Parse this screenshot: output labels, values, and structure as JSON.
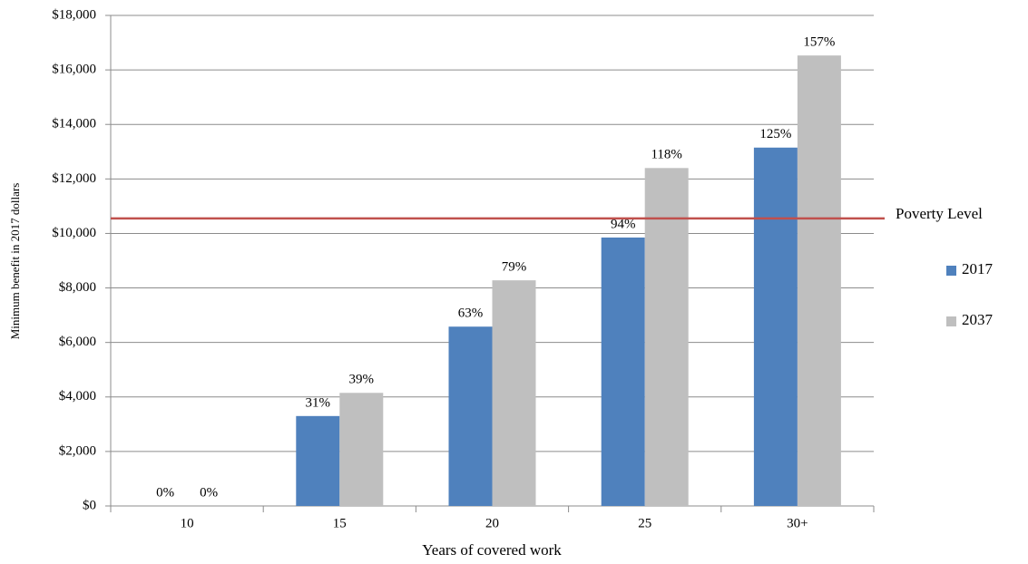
{
  "chart_data": {
    "type": "bar",
    "y_axis_title": "Minimum benefit in 2017 dollars",
    "x_axis_title": "Years of covered work",
    "categories": [
      "10",
      "15",
      "20",
      "25",
      "30+"
    ],
    "series": [
      {
        "name": "2017",
        "color": "#4f81bd",
        "values": [
          0,
          3300,
          6580,
          9850,
          13150
        ],
        "labels": [
          "0%",
          "31%",
          "63%",
          "94%",
          "125%"
        ]
      },
      {
        "name": "2037",
        "color": "#bfbfbf",
        "values": [
          0,
          4150,
          8280,
          12400,
          16530
        ],
        "labels": [
          "0%",
          "39%",
          "79%",
          "118%",
          "157%"
        ]
      }
    ],
    "reference_line": {
      "value": 10550,
      "label": "Poverty Level",
      "color": "#c0504d"
    },
    "ylim": [
      0,
      18000
    ],
    "yticks": [
      {
        "value": 0,
        "label": "$0"
      },
      {
        "value": 2000,
        "label": "$2,000"
      },
      {
        "value": 4000,
        "label": "$4,000"
      },
      {
        "value": 6000,
        "label": "$6,000"
      },
      {
        "value": 8000,
        "label": "$8,000"
      },
      {
        "value": 10000,
        "label": "$10,000"
      },
      {
        "value": 12000,
        "label": "$12,000"
      },
      {
        "value": 14000,
        "label": "$14,000"
      },
      {
        "value": 16000,
        "label": "$16,000"
      },
      {
        "value": 18000,
        "label": "$18,000"
      }
    ],
    "grid": true
  }
}
